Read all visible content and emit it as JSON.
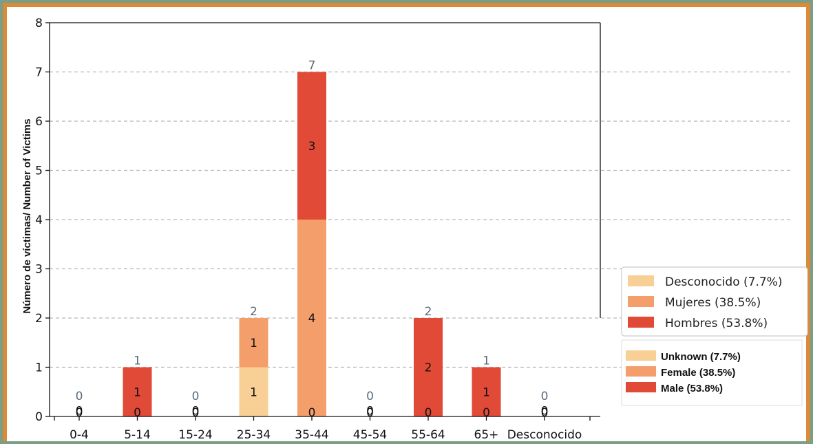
{
  "chart_data": {
    "type": "bar",
    "stacked": true,
    "categories": [
      "0-4",
      "5-14",
      "15-24",
      "25-34",
      "35-44",
      "45-54",
      "55-64",
      "65+",
      "Desconocido"
    ],
    "series": [
      {
        "name": "Desconocido (7.7%)",
        "name_en": "Unknown (7.7%)",
        "color": "#f8cf95",
        "values": [
          0,
          0,
          0,
          1,
          0,
          0,
          0,
          0,
          0
        ]
      },
      {
        "name": "Mujeres (38.5%)",
        "name_en": "Female (38.5%)",
        "color": "#f49e6c",
        "values": [
          0,
          0,
          0,
          1,
          4,
          0,
          0,
          0,
          0
        ]
      },
      {
        "name": "Hombres (53.8%)",
        "name_en": "Male (53.8%)",
        "color": "#e04a37",
        "values": [
          0,
          1,
          0,
          0,
          3,
          0,
          2,
          1,
          0
        ]
      }
    ],
    "totals": [
      0,
      1,
      0,
      2,
      7,
      0,
      2,
      1,
      0
    ],
    "ylabel": "Número de víctimas/ Number of Victims",
    "xlabel": "",
    "ylim": [
      0,
      8
    ],
    "yticks": [
      0,
      1,
      2,
      3,
      4,
      5,
      6,
      7,
      8
    ],
    "grid": "y-dashed",
    "legend_placement": "right",
    "segment_labels": [
      {
        "category": "0-4",
        "labels": [
          "0",
          "0"
        ]
      },
      {
        "category": "5-14",
        "labels": [
          "1",
          "0"
        ]
      },
      {
        "category": "15-24",
        "labels": [
          "0",
          "0"
        ]
      },
      {
        "category": "25-34",
        "labels": [
          "1",
          "1"
        ]
      },
      {
        "category": "35-44",
        "labels": [
          "3",
          "4",
          "0"
        ]
      },
      {
        "category": "45-54",
        "labels": [
          "0",
          "0"
        ]
      },
      {
        "category": "55-64",
        "labels": [
          "2",
          "0"
        ]
      },
      {
        "category": "65+",
        "labels": [
          "1",
          "0"
        ]
      },
      {
        "category": "Desconocido",
        "labels": [
          "0",
          "0"
        ]
      }
    ]
  }
}
